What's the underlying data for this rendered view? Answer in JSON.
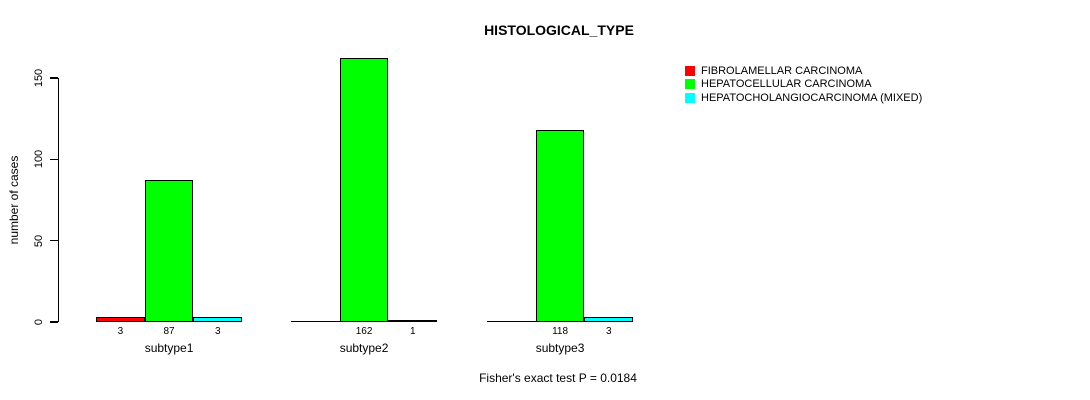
{
  "title": "HISTOLOGICAL_TYPE",
  "ylabel": "number of cases",
  "footer": "Fisher's exact test P = 0.0184",
  "legend": {
    "items": [
      {
        "label": "FIBROLAMELLAR CARCINOMA",
        "color": "#ff0000"
      },
      {
        "label": "HEPATOCELLULAR CARCINOMA",
        "color": "#00ff00"
      },
      {
        "label": "HEPATOCHOLANGIOCARCINOMA (MIXED)",
        "color": "#00ffff"
      }
    ]
  },
  "chart_data": {
    "type": "bar",
    "title": "HISTOLOGICAL_TYPE",
    "categories": [
      "subtype1",
      "subtype2",
      "subtype3"
    ],
    "series": [
      {
        "name": "FIBROLAMELLAR CARCINOMA",
        "color": "#ff0000",
        "values": [
          3,
          0,
          0
        ],
        "labels": [
          "3",
          "",
          ""
        ]
      },
      {
        "name": "HEPATOCELLULAR CARCINOMA",
        "color": "#00ff00",
        "values": [
          87,
          162,
          118
        ],
        "labels": [
          "87",
          "162",
          "118"
        ]
      },
      {
        "name": "HEPATOCHOLANGIOCARCINOMA (MIXED)",
        "color": "#00ffff",
        "values": [
          3,
          1,
          3
        ],
        "labels": [
          "3",
          "1",
          "3"
        ]
      }
    ],
    "ylabel": "number of cases",
    "yticks": [
      0,
      50,
      100,
      150
    ],
    "ylim": [
      0,
      162
    ],
    "grid": false,
    "legend_position": "right",
    "annotation": "Fisher's exact test P = 0.0184"
  }
}
